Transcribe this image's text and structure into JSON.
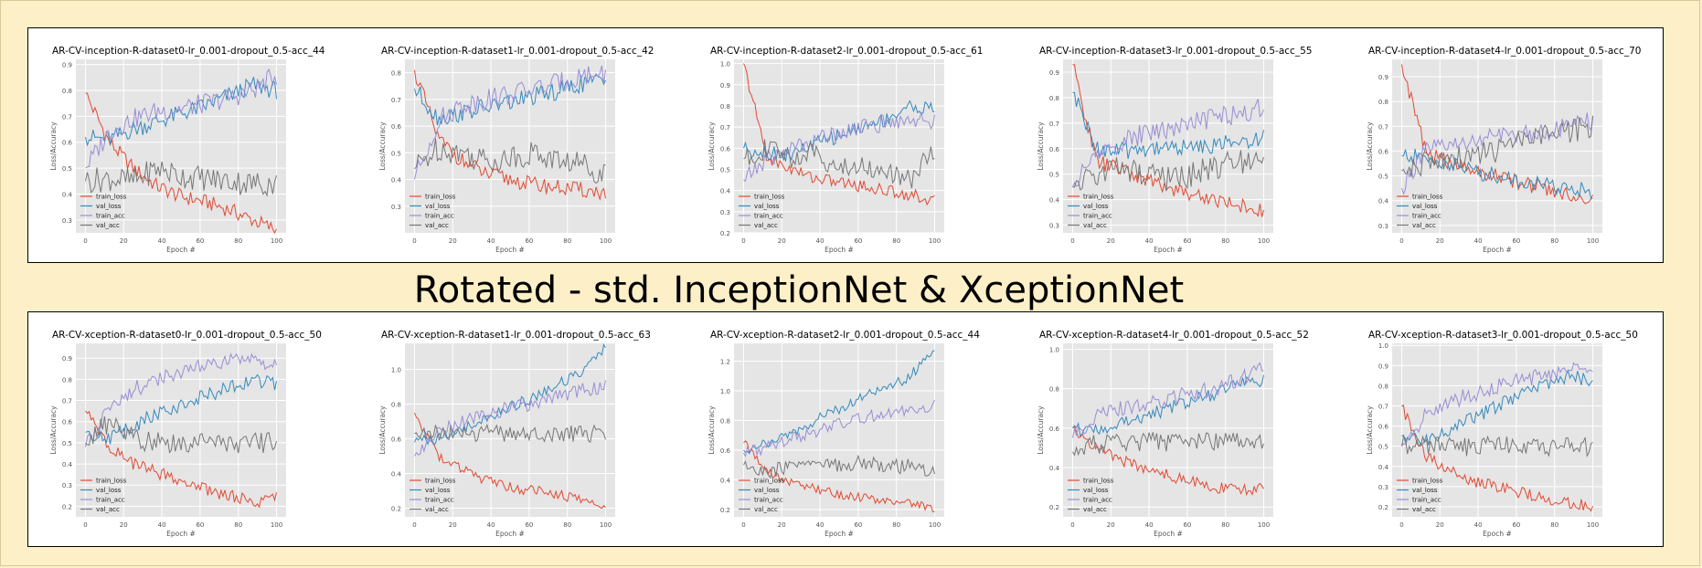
{
  "banner": "Rotated - std. InceptionNet & XceptionNet",
  "colors": {
    "page_bg": "#fdf0c8",
    "plot_bg": "#e5e5e5",
    "grid": "#ffffff",
    "train_loss": "#e24a33",
    "val_loss": "#348abd",
    "train_acc": "#988ed5",
    "val_acc": "#777777"
  },
  "rows": [
    {
      "name": "inception",
      "charts": [
        {
          "title": "AR-CV-inception-R-dataset0-lr_0.001-dropout_0.5-acc_44",
          "ylim": [
            0.25,
            0.92
          ],
          "yticks": [
            0.3,
            0.4,
            0.5,
            0.6,
            0.7,
            0.8,
            0.9
          ],
          "tick_labels": [
            "0.3",
            "0.4",
            "0.5",
            "0.6",
            "0.7",
            "0.8",
            "0.9"
          ],
          "train_loss": [
            0.79,
            0.6,
            0.5,
            0.43,
            0.39,
            0.37,
            0.34,
            0.3,
            0.26
          ],
          "val_loss": [
            0.62,
            0.61,
            0.65,
            0.68,
            0.71,
            0.74,
            0.78,
            0.82,
            0.8
          ],
          "train_acc": [
            0.5,
            0.64,
            0.69,
            0.72,
            0.73,
            0.75,
            0.77,
            0.8,
            0.86
          ],
          "val_acc": [
            0.45,
            0.46,
            0.45,
            0.5,
            0.47,
            0.46,
            0.45,
            0.44,
            0.44
          ]
        },
        {
          "title": "AR-CV-inception-R-dataset1-lr_0.001-dropout_0.5-acc_42",
          "ylim": [
            0.2,
            0.85
          ],
          "yticks": [
            0.3,
            0.4,
            0.5,
            0.6,
            0.7,
            0.8
          ],
          "tick_labels": [
            "0.3",
            "0.4",
            "0.5",
            "0.6",
            "0.7",
            "0.8"
          ],
          "train_loss": [
            0.81,
            0.55,
            0.47,
            0.42,
            0.4,
            0.38,
            0.37,
            0.36,
            0.35
          ],
          "val_loss": [
            0.74,
            0.63,
            0.65,
            0.67,
            0.69,
            0.71,
            0.73,
            0.76,
            0.77
          ],
          "train_acc": [
            0.4,
            0.62,
            0.68,
            0.7,
            0.72,
            0.74,
            0.76,
            0.79,
            0.8
          ],
          "val_acc": [
            0.44,
            0.52,
            0.5,
            0.47,
            0.48,
            0.5,
            0.47,
            0.46,
            0.42
          ]
        },
        {
          "title": "AR-CV-inception-R-dataset2-lr_0.001-dropout_0.5-acc_61",
          "ylim": [
            0.2,
            1.02
          ],
          "yticks": [
            0.2,
            0.3,
            0.4,
            0.5,
            0.6,
            0.7,
            0.8,
            0.9,
            1.0
          ],
          "tick_labels": [
            "0.2",
            "0.3",
            "0.4",
            "0.5",
            "0.6",
            "0.7",
            "0.8",
            "0.9",
            "1.0"
          ],
          "train_loss": [
            1.0,
            0.55,
            0.5,
            0.46,
            0.44,
            0.42,
            0.4,
            0.38,
            0.35
          ],
          "val_loss": [
            0.6,
            0.58,
            0.57,
            0.62,
            0.66,
            0.7,
            0.74,
            0.8,
            0.78
          ],
          "train_acc": [
            0.45,
            0.55,
            0.6,
            0.64,
            0.68,
            0.7,
            0.72,
            0.74,
            0.72
          ],
          "val_acc": [
            0.55,
            0.6,
            0.55,
            0.58,
            0.5,
            0.52,
            0.48,
            0.45,
            0.6
          ]
        },
        {
          "title": "AR-CV-inception-R-dataset3-lr_0.001-dropout_0.5-acc_55",
          "ylim": [
            0.27,
            0.95
          ],
          "yticks": [
            0.3,
            0.4,
            0.5,
            0.6,
            0.7,
            0.8,
            0.9
          ],
          "tick_labels": [
            "0.3",
            "0.4",
            "0.5",
            "0.6",
            "0.7",
            "0.8",
            "0.9"
          ],
          "train_loss": [
            0.93,
            0.55,
            0.52,
            0.48,
            0.45,
            0.42,
            0.4,
            0.38,
            0.35
          ],
          "val_loss": [
            0.82,
            0.6,
            0.59,
            0.6,
            0.61,
            0.6,
            0.62,
            0.62,
            0.65
          ],
          "train_acc": [
            0.45,
            0.58,
            0.62,
            0.66,
            0.68,
            0.7,
            0.72,
            0.74,
            0.76
          ],
          "val_acc": [
            0.45,
            0.5,
            0.52,
            0.5,
            0.48,
            0.5,
            0.53,
            0.55,
            0.56
          ]
        },
        {
          "title": "AR-CV-inception-R-dataset4-lr_0.001-dropout_0.5-acc_70",
          "ylim": [
            0.27,
            0.97
          ],
          "yticks": [
            0.3,
            0.4,
            0.5,
            0.6,
            0.7,
            0.8,
            0.9
          ],
          "tick_labels": [
            "0.3",
            "0.4",
            "0.5",
            "0.6",
            "0.7",
            "0.8",
            "0.9"
          ],
          "train_loss": [
            0.95,
            0.6,
            0.55,
            0.52,
            0.5,
            0.47,
            0.45,
            0.42,
            0.41
          ],
          "val_loss": [
            0.58,
            0.57,
            0.55,
            0.52,
            0.5,
            0.48,
            0.46,
            0.45,
            0.44
          ],
          "train_acc": [
            0.45,
            0.6,
            0.62,
            0.64,
            0.66,
            0.67,
            0.68,
            0.7,
            0.72
          ],
          "val_acc": [
            0.52,
            0.55,
            0.56,
            0.58,
            0.6,
            0.64,
            0.66,
            0.68,
            0.7
          ]
        }
      ]
    },
    {
      "name": "xception",
      "charts": [
        {
          "title": "AR-CV-xception-R-dataset0-lr_0.001-dropout_0.5-acc_50",
          "ylim": [
            0.15,
            0.97
          ],
          "yticks": [
            0.2,
            0.3,
            0.4,
            0.5,
            0.6,
            0.7,
            0.8,
            0.9
          ],
          "tick_labels": [
            "0.2",
            "0.3",
            "0.4",
            "0.5",
            "0.6",
            "0.7",
            "0.8",
            "0.9"
          ],
          "train_loss": [
            0.65,
            0.48,
            0.4,
            0.36,
            0.32,
            0.28,
            0.25,
            0.22,
            0.24
          ],
          "val_loss": [
            0.55,
            0.52,
            0.58,
            0.64,
            0.68,
            0.72,
            0.76,
            0.8,
            0.77
          ],
          "train_acc": [
            0.48,
            0.68,
            0.75,
            0.8,
            0.83,
            0.86,
            0.88,
            0.89,
            0.88
          ],
          "val_acc": [
            0.5,
            0.6,
            0.52,
            0.5,
            0.5,
            0.5,
            0.5,
            0.5,
            0.5
          ]
        },
        {
          "title": "AR-CV-xception-R-dataset1-lr_0.001-dropout_0.5-acc_63",
          "ylim": [
            0.15,
            1.15
          ],
          "yticks": [
            0.2,
            0.4,
            0.6,
            0.8,
            1.0
          ],
          "tick_labels": [
            "0.2",
            "0.4",
            "0.6",
            "0.8",
            "1.0"
          ],
          "train_loss": [
            0.75,
            0.5,
            0.42,
            0.36,
            0.32,
            0.3,
            0.28,
            0.25,
            0.2
          ],
          "val_loss": [
            0.58,
            0.6,
            0.66,
            0.72,
            0.78,
            0.84,
            0.92,
            0.98,
            1.12
          ],
          "train_acc": [
            0.5,
            0.65,
            0.7,
            0.74,
            0.78,
            0.8,
            0.84,
            0.88,
            0.9
          ],
          "val_acc": [
            0.63,
            0.63,
            0.63,
            0.63,
            0.63,
            0.63,
            0.63,
            0.63,
            0.63
          ]
        },
        {
          "title": "AR-CV-xception-R-dataset2-lr_0.001-dropout_0.5-acc_44",
          "ylim": [
            0.15,
            1.32
          ],
          "yticks": [
            0.2,
            0.4,
            0.6,
            0.8,
            1.0,
            1.2
          ],
          "tick_labels": [
            "0.2",
            "0.4",
            "0.6",
            "0.8",
            "1.0",
            "1.2"
          ],
          "train_loss": [
            0.65,
            0.45,
            0.38,
            0.34,
            0.3,
            0.28,
            0.26,
            0.24,
            0.2
          ],
          "val_loss": [
            0.6,
            0.65,
            0.72,
            0.8,
            0.88,
            0.96,
            1.02,
            1.1,
            1.3
          ],
          "train_acc": [
            0.58,
            0.62,
            0.68,
            0.72,
            0.78,
            0.82,
            0.85,
            0.88,
            0.9
          ],
          "val_acc": [
            0.5,
            0.45,
            0.5,
            0.48,
            0.5,
            0.52,
            0.48,
            0.5,
            0.45
          ]
        },
        {
          "title": "AR-CV-xception-R-dataset4-lr_0.001-dropout_0.5-acc_52",
          "ylim": [
            0.15,
            1.03
          ],
          "yticks": [
            0.2,
            0.4,
            0.6,
            0.8,
            1.0
          ],
          "tick_labels": [
            "0.2",
            "0.4",
            "0.6",
            "0.8",
            "1.0"
          ],
          "train_loss": [
            0.6,
            0.5,
            0.44,
            0.4,
            0.36,
            0.33,
            0.3,
            0.28,
            0.3
          ],
          "val_loss": [
            0.6,
            0.58,
            0.62,
            0.66,
            0.7,
            0.74,
            0.78,
            0.82,
            0.85
          ],
          "train_acc": [
            0.55,
            0.66,
            0.7,
            0.72,
            0.75,
            0.78,
            0.8,
            0.85,
            0.9
          ],
          "val_acc": [
            0.48,
            0.52,
            0.53,
            0.53,
            0.53,
            0.53,
            0.53,
            0.53,
            0.53
          ]
        },
        {
          "title": "AR-CV-xception-R-dataset3-lr_0.001-dropout_0.5-acc_50",
          "ylim": [
            0.15,
            1.01
          ],
          "yticks": [
            0.2,
            0.3,
            0.4,
            0.5,
            0.6,
            0.7,
            0.8,
            0.9,
            1.0
          ],
          "tick_labels": [
            "0.2",
            "0.3",
            "0.4",
            "0.5",
            "0.6",
            "0.7",
            "0.8",
            "0.9",
            "1.0"
          ],
          "train_loss": [
            0.7,
            0.45,
            0.38,
            0.33,
            0.3,
            0.27,
            0.24,
            0.22,
            0.2
          ],
          "val_loss": [
            0.55,
            0.52,
            0.58,
            0.64,
            0.7,
            0.75,
            0.8,
            0.85,
            0.82
          ],
          "train_acc": [
            0.5,
            0.65,
            0.72,
            0.76,
            0.8,
            0.83,
            0.85,
            0.88,
            0.88
          ],
          "val_acc": [
            0.5,
            0.5,
            0.5,
            0.5,
            0.5,
            0.5,
            0.5,
            0.5,
            0.5
          ]
        }
      ]
    }
  ],
  "chart_data": {
    "type": "line",
    "x": [
      0,
      12.5,
      25,
      37.5,
      50,
      62.5,
      75,
      87.5,
      100
    ],
    "xlabel": "Epoch #",
    "ylabel": "Loss/Accuracy",
    "xlim": [
      -5,
      105
    ],
    "xticks": [
      0,
      20,
      40,
      60,
      80,
      100
    ],
    "xtick_labels": [
      "0",
      "20",
      "40",
      "60",
      "80",
      "100"
    ],
    "legend_position": "lower-left",
    "legend": [
      "train_loss",
      "val_loss",
      "train_acc",
      "val_acc"
    ],
    "grid": true
  }
}
